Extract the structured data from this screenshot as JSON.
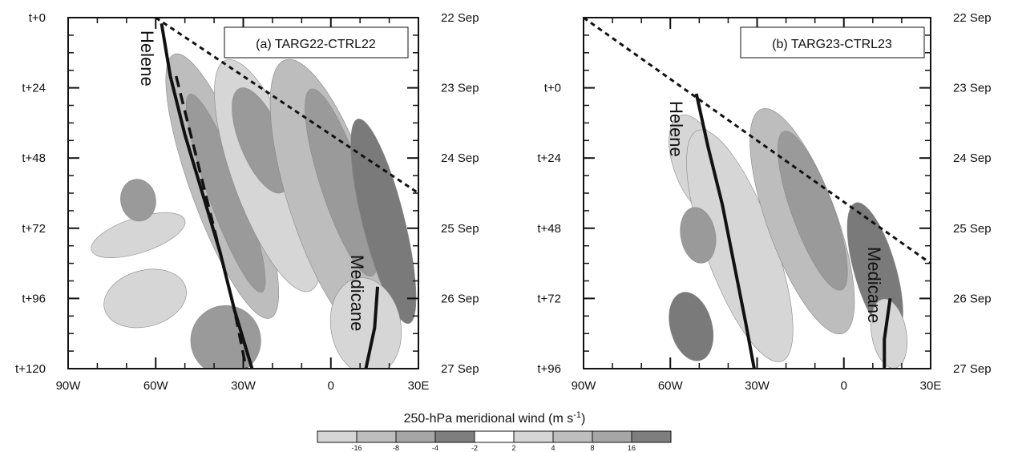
{
  "chart_data": [
    {
      "type": "heatmap",
      "panel_label": "(a) TARG22-CTRL22",
      "x_ticks": [
        "90W",
        "60W",
        "30W",
        "0",
        "30E"
      ],
      "x_range": [
        -90,
        30
      ],
      "y_ticks_left": [
        "t+0",
        "t+24",
        "t+48",
        "t+72",
        "t+96",
        "t+120"
      ],
      "y_ticks_right": [
        "22 Sep",
        "23 Sep",
        "24 Sep",
        "25 Sep",
        "26 Sep",
        "27 Sep"
      ],
      "y_range": [
        0,
        120
      ],
      "tracks": [
        {
          "name": "Helene",
          "points": [
            [
              -58,
              2
            ],
            [
              -55,
              20
            ],
            [
              -50,
              40
            ],
            [
              -44,
              60
            ],
            [
              -38,
              80
            ],
            [
              -33,
              100
            ],
            [
              -27,
              120
            ]
          ]
        },
        {
          "name": "Medicane",
          "points": [
            [
              16,
              92
            ],
            [
              15,
              106
            ],
            [
              12,
              120
            ]
          ]
        }
      ],
      "dashed_track": [
        [
          -53,
          20
        ],
        [
          -48,
          40
        ],
        [
          -43,
          60
        ],
        [
          -38,
          80
        ],
        [
          -33,
          100
        ],
        [
          -29,
          120
        ]
      ],
      "target_boundary": [
        [
          -60,
          0
        ],
        [
          30,
          60
        ]
      ]
    },
    {
      "type": "heatmap",
      "panel_label": "(b) TARG23-CTRL23",
      "x_ticks": [
        "90W",
        "60W",
        "30W",
        "0",
        "30E"
      ],
      "x_range": [
        -90,
        30
      ],
      "y_ticks_left": [
        "t+0",
        "t+24",
        "t+48",
        "t+72",
        "t+96"
      ],
      "y_ticks_right": [
        "22 Sep",
        "23 Sep",
        "24 Sep",
        "25 Sep",
        "26 Sep",
        "27 Sep"
      ],
      "y_range": [
        -24,
        96
      ],
      "tracks": [
        {
          "name": "Helene",
          "points": [
            [
              -51,
              2
            ],
            [
              -47,
              20
            ],
            [
              -42,
              40
            ],
            [
              -38,
              60
            ],
            [
              -34,
              80
            ],
            [
              -31,
              96
            ]
          ]
        },
        {
          "name": "Medicane",
          "points": [
            [
              16,
              72
            ],
            [
              14,
              86
            ],
            [
              14,
              96
            ]
          ]
        }
      ],
      "dashed_track": [],
      "target_boundary": [
        [
          -90,
          -24
        ],
        [
          30,
          60
        ]
      ]
    }
  ],
  "colorbar": {
    "title": "250-hPa meridional wind (m s",
    "title_sup": "-1",
    "title_end": ")",
    "tick_labels": [
      "-16",
      "-8",
      "-4",
      "-2",
      "2",
      "4",
      "8",
      "16"
    ],
    "colors": [
      "#d6d6d6",
      "#bebebe",
      "#a6a6a6",
      "#7e7e7e",
      "#ffffff",
      "#d6d6d6",
      "#bebebe",
      "#a6a6a6",
      "#7e7e7e"
    ]
  },
  "shade_colors": {
    "light": "#d6d6d6",
    "mid": "#bdbdbd",
    "dark": "#9a9a9a",
    "darkest": "#7a7a7a",
    "line": "#111111"
  }
}
